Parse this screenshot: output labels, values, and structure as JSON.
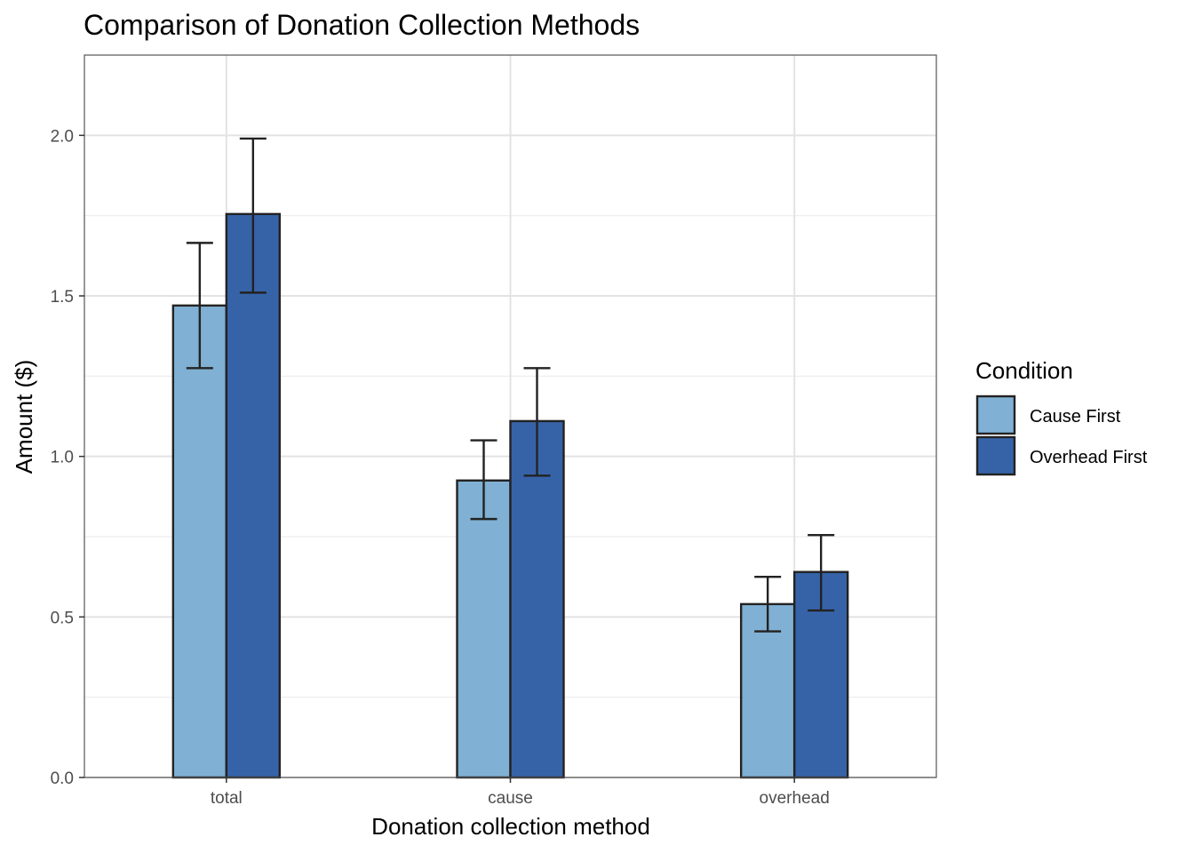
{
  "chart_data": {
    "type": "bar",
    "title": "Comparison of Donation Collection Methods",
    "xlabel": "Donation collection method",
    "ylabel": "Amount ($)",
    "categories": [
      "total",
      "cause",
      "overhead"
    ],
    "ylim": [
      0,
      2.25
    ],
    "yticks": [
      0.0,
      0.5,
      1.0,
      1.5,
      2.0
    ],
    "ytick_labels": [
      "0.0",
      "0.5",
      "1.0",
      "1.5",
      "2.0"
    ],
    "grid": true,
    "legend": {
      "title": "Condition",
      "position": "right"
    },
    "series": [
      {
        "name": "Cause First",
        "color": "#80b0d3",
        "values": [
          1.47,
          0.925,
          0.54
        ],
        "error_low": [
          1.275,
          0.805,
          0.455
        ],
        "error_high": [
          1.665,
          1.05,
          0.625
        ]
      },
      {
        "name": "Overhead First",
        "color": "#3663a8",
        "values": [
          1.755,
          1.11,
          0.64
        ],
        "error_low": [
          1.51,
          0.94,
          0.52
        ],
        "error_high": [
          1.99,
          1.275,
          0.755
        ]
      }
    ]
  }
}
